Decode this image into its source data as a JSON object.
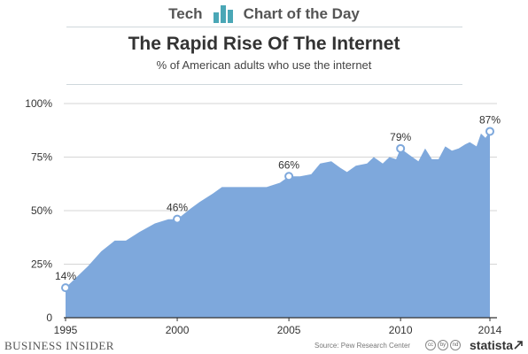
{
  "header": {
    "brand": "Tech",
    "tagline": "Chart of the Day",
    "accent_color": "#4aa7b6"
  },
  "chart_data": {
    "type": "area",
    "title": "The Rapid Rise Of The Internet",
    "subtitle": "% of American adults who use the internet",
    "xlabel": "",
    "ylabel": "",
    "xlim": [
      1995,
      2014
    ],
    "ylim": [
      0,
      100
    ],
    "x_ticks": [
      1995,
      2000,
      2005,
      2010,
      2014
    ],
    "y_ticks": [
      0,
      25,
      50,
      75,
      100
    ],
    "y_tick_labels": [
      "0",
      "25%",
      "50%",
      "75%",
      "100%"
    ],
    "grid": true,
    "fill_color": "#7ea8dc",
    "series": [
      {
        "x": [
          1995.0,
          1996.0,
          1996.6,
          1997.2,
          1997.7,
          1998.3,
          1999.0,
          1999.6,
          2000.0,
          2000.6,
          2001.0,
          2001.6,
          2002.0,
          2002.6,
          2003.3,
          2004.0,
          2004.6,
          2005.0,
          2005.5,
          2006.0,
          2006.4,
          2006.9,
          2007.3,
          2007.6,
          2008.0,
          2008.5,
          2008.8,
          2009.2,
          2009.5,
          2009.8,
          2010.0,
          2010.4,
          2010.8,
          2011.1,
          2011.4,
          2011.7,
          2012.0,
          2012.3,
          2012.6,
          2012.9,
          2013.1,
          2013.4,
          2013.6,
          2013.8,
          2014.0
        ],
        "values": [
          14,
          24,
          31,
          36,
          36,
          40,
          44,
          46,
          46,
          51,
          54,
          58,
          61,
          61,
          61,
          61,
          63,
          66,
          66,
          67,
          72,
          73,
          70,
          68,
          71,
          72,
          75,
          72,
          75,
          74,
          79,
          76,
          73,
          79,
          74,
          74,
          80,
          78,
          79,
          81,
          82,
          80,
          86,
          84,
          87
        ]
      }
    ],
    "labeled_points": [
      {
        "x": 1995,
        "y": 14,
        "label": "14%"
      },
      {
        "x": 2000,
        "y": 46,
        "label": "46%"
      },
      {
        "x": 2005,
        "y": 66,
        "label": "66%"
      },
      {
        "x": 2010,
        "y": 79,
        "label": "79%"
      },
      {
        "x": 2014,
        "y": 87,
        "label": "87%"
      }
    ]
  },
  "footer": {
    "publisher": "BUSINESS INSIDER",
    "source": "Source: Pew Research Center",
    "cc_icons": [
      "cc",
      "by",
      "nd"
    ],
    "statista": "statista"
  }
}
